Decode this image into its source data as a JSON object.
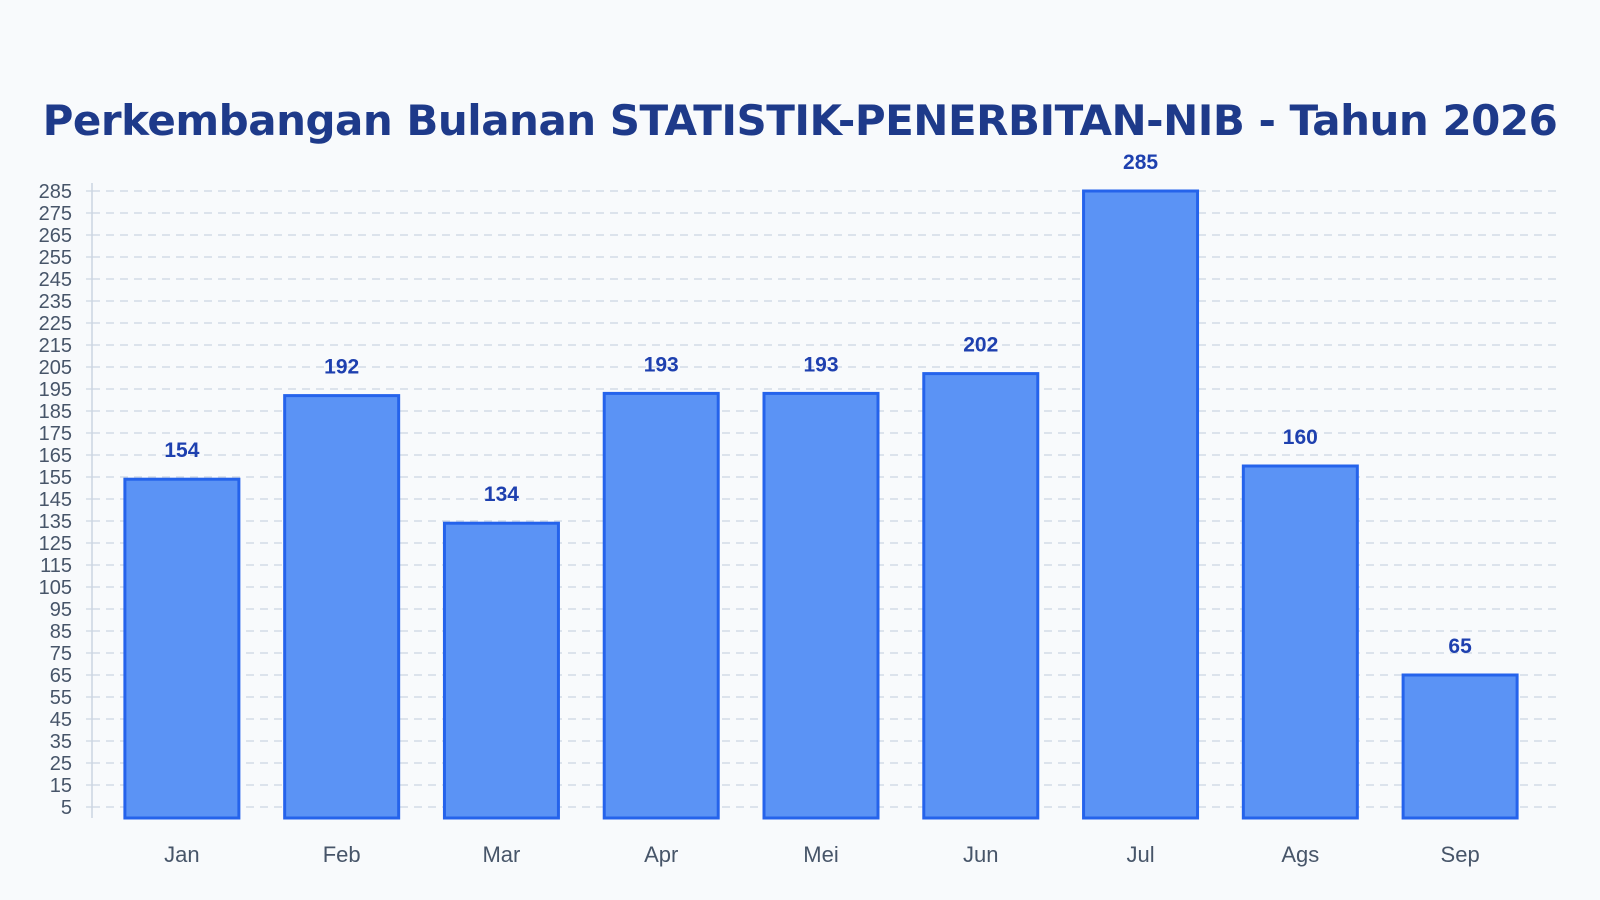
{
  "chart_data": {
    "type": "bar",
    "title": "Perkembangan Bulanan STATISTIK-PENERBITAN-NIB - Tahun 2026",
    "categories": [
      "Jan",
      "Feb",
      "Mar",
      "Apr",
      "Mei",
      "Jun",
      "Jul",
      "Ags",
      "Sep"
    ],
    "values": [
      154,
      192,
      134,
      193,
      193,
      202,
      285,
      160,
      65
    ],
    "xlabel": "",
    "ylabel": "",
    "ylim": [
      0,
      285
    ],
    "yticks": [
      5,
      15,
      25,
      35,
      45,
      55,
      65,
      75,
      85,
      95,
      105,
      115,
      125,
      135,
      145,
      155,
      165,
      175,
      185,
      195,
      205,
      215,
      225,
      235,
      245,
      255,
      265,
      275,
      285
    ],
    "grid": true,
    "grid_style": "dashed",
    "data_labels": true,
    "colors": {
      "bar_fill": "#5b93f5",
      "bar_stroke": "#2563eb",
      "value_label": "#1e40af",
      "title": "#1e3a8a",
      "grid": "#cbd5e1",
      "axis": "#cbd5e1",
      "tick_label": "#475569",
      "background": "#f8fafc"
    }
  }
}
